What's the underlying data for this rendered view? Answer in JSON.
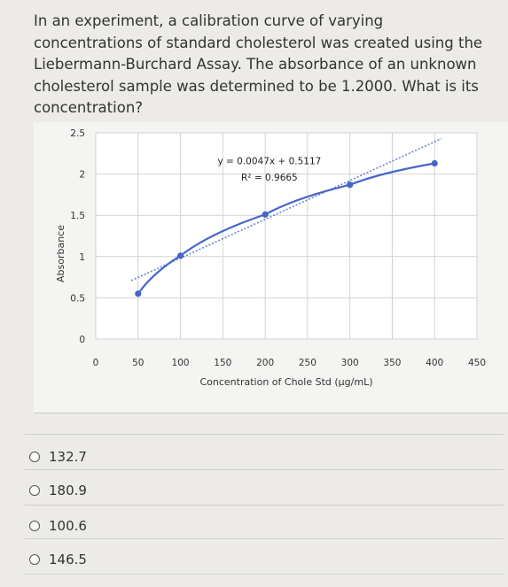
{
  "question": {
    "text": "In an experiment, a calibration curve of varying concentrations of standard cholesterol was created using the Liebermann-Burchard Assay. The absorbance of an unknown cholesterol sample was determined to be 1.2000. What is its concentration?"
  },
  "chart_data": {
    "type": "line",
    "xlabel": "Concentration of Chole Std (µg/mL)",
    "ylabel": "Absorbance",
    "xlim": [
      0,
      450
    ],
    "ylim": [
      0,
      2.5
    ],
    "x_ticks": [
      "0",
      "50",
      "100",
      "150",
      "200",
      "250",
      "300",
      "350",
      "400",
      "450"
    ],
    "y_ticks": [
      "0",
      "0.5",
      "1",
      "1.5",
      "2",
      "2.5"
    ],
    "grid": true,
    "series": [
      {
        "x": [
          50,
          100,
          200,
          300,
          400
        ],
        "values": [
          0.55,
          1.01,
          1.51,
          1.87,
          2.13
        ],
        "color": "#4466c8"
      }
    ],
    "trendline": {
      "equation": "y = 0.0047x + 0.5117",
      "r_squared": "R² = 0.9665",
      "slope": 0.0047,
      "intercept": 0.5117,
      "x_range": [
        50,
        400
      ],
      "color": "#4466c8"
    }
  },
  "options": [
    {
      "label": "132.7"
    },
    {
      "label": "180.9"
    },
    {
      "label": "100.6"
    },
    {
      "label": "146.5"
    }
  ],
  "colors": {
    "series": "#4466c8",
    "grid": "#d2d2d0",
    "radio_border": "#555555"
  }
}
